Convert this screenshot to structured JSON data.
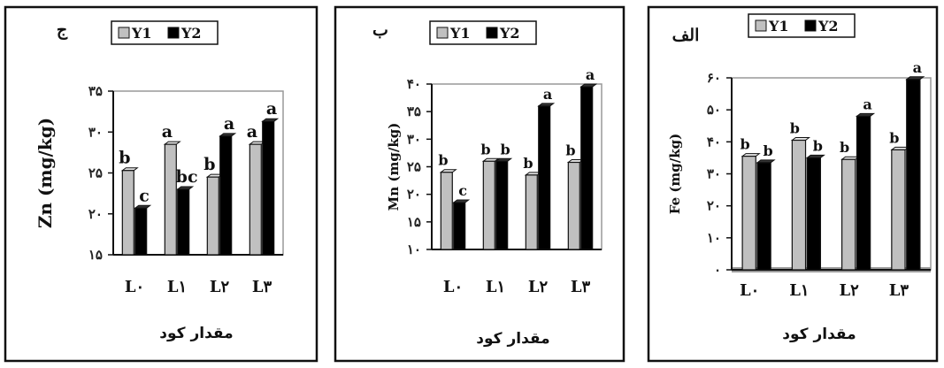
{
  "chart_data": [
    {
      "type": "bar",
      "title": "ج",
      "ylabel": "Zn (mg/kg)",
      "xlabel": "مقدار کود",
      "categories": [
        "L۰",
        "L۱",
        "L۲",
        "L۳"
      ],
      "ylim": [
        15,
        35
      ],
      "yticks": [
        "۱۵",
        "۲۰",
        "۲۵",
        "۳۰",
        "۳۵"
      ],
      "legend": [
        "Y1",
        "Y2"
      ],
      "legend_position": "top",
      "series": [
        {
          "name": "Y1",
          "color": "#c0c0c0",
          "values": [
            25.3,
            28.5,
            24.5,
            28.5
          ],
          "labels": [
            "b",
            "a",
            "b",
            "a"
          ]
        },
        {
          "name": "Y2",
          "color": "#000000",
          "values": [
            20.7,
            23.0,
            29.5,
            31.3
          ],
          "labels": [
            "c",
            "bc",
            "a",
            "a"
          ]
        }
      ]
    },
    {
      "type": "bar",
      "title": "ب",
      "ylabel": "Mn (mg/kg)",
      "xlabel": "مقدار کود",
      "categories": [
        "L۰",
        "L۱",
        "L۲",
        "L۳"
      ],
      "ylim": [
        10,
        40
      ],
      "yticks": [
        "۱۰",
        "۱۵",
        "۲۰",
        "۲۵",
        "۳۰",
        "۳۵",
        "۴۰"
      ],
      "legend": [
        "Y1",
        "Y2"
      ],
      "legend_position": "top",
      "series": [
        {
          "name": "Y1",
          "color": "#c0c0c0",
          "values": [
            24.0,
            26.0,
            23.5,
            25.8
          ],
          "labels": [
            "b",
            "b",
            "b",
            "b"
          ]
        },
        {
          "name": "Y2",
          "color": "#000000",
          "values": [
            18.5,
            26.0,
            36.0,
            39.5
          ],
          "labels": [
            "c",
            "b",
            "a",
            "a"
          ]
        }
      ]
    },
    {
      "type": "bar",
      "title": "الف",
      "ylabel": "Fe (mg/kg)",
      "xlabel": "مقدار کود",
      "categories": [
        "L۰",
        "L۱",
        "L۲",
        "L۳"
      ],
      "ylim": [
        0,
        60
      ],
      "yticks": [
        "۰",
        "۱۰",
        "۲۰",
        "۳۰",
        "۴۰",
        "۵۰",
        "۶۰"
      ],
      "legend": [
        "Y1",
        "Y2"
      ],
      "legend_position": "top",
      "series": [
        {
          "name": "Y1",
          "color": "#c0c0c0",
          "values": [
            35.5,
            40.5,
            34.5,
            37.5
          ],
          "labels": [
            "b",
            "b",
            "b",
            "b"
          ]
        },
        {
          "name": "Y2",
          "color": "#000000",
          "values": [
            33.5,
            35.0,
            48.0,
            59.5
          ],
          "labels": [
            "b",
            "b",
            "a",
            "a"
          ]
        }
      ]
    }
  ]
}
